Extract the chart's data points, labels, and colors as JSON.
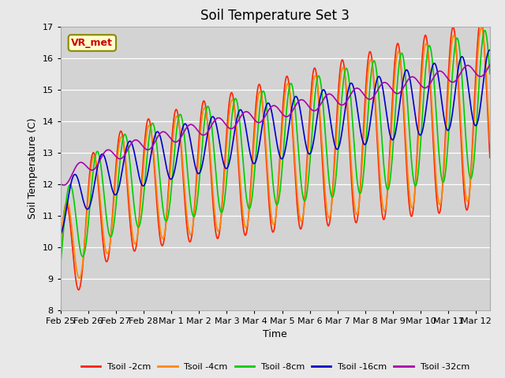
{
  "title": "Soil Temperature Set 3",
  "xlabel": "Time",
  "ylabel": "Soil Temperature (C)",
  "ylim": [
    8.0,
    17.0
  ],
  "yticks": [
    8.0,
    9.0,
    10.0,
    11.0,
    12.0,
    13.0,
    14.0,
    15.0,
    16.0,
    17.0
  ],
  "background_color": "#e8e8e8",
  "plot_bg_color": "#d3d3d3",
  "series_colors": {
    "Tsoil -2cm": "#ff2200",
    "Tsoil -4cm": "#ff8800",
    "Tsoil -8cm": "#00cc00",
    "Tsoil -16cm": "#0000cc",
    "Tsoil -32cm": "#aa00aa"
  },
  "annotation_text": "VR_met",
  "annotation_color": "#cc0000",
  "annotation_bg": "#ffffcc",
  "annotation_border": "#888800",
  "xtick_labels": [
    "Feb 25",
    "Feb 26",
    "Feb 27",
    "Feb 28",
    "Mar 1",
    "Mar 2",
    "Mar 3",
    "Mar 4",
    "Mar 5",
    "Mar 6",
    "Mar 7",
    "Mar 8",
    "Mar 9",
    "Mar 10",
    "Mar 11",
    "Mar 12"
  ],
  "line_width": 1.2,
  "title_fontsize": 12,
  "label_fontsize": 9
}
